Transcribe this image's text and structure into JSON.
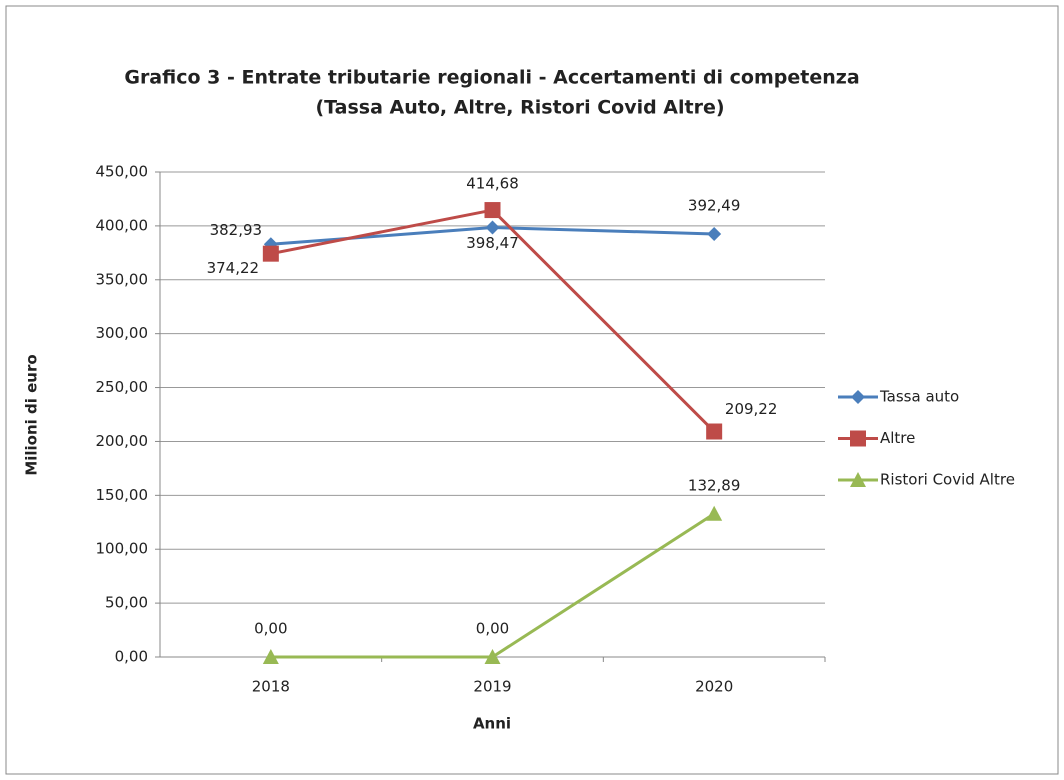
{
  "chart_data": {
    "type": "line",
    "title": "Grafico 3 - Entrate tributarie regionali - Accertamenti di competenza",
    "subtitle": "(Tassa Auto, Altre, Ristori Covid Altre)",
    "x_label": "Anni",
    "y_label": "Milioni di euro",
    "categories": [
      "2018",
      "2019",
      "2020"
    ],
    "series": [
      {
        "name": "Tassa auto",
        "color": "#4a7ebb",
        "marker": "diamond",
        "values": [
          382.93,
          398.47,
          392.49
        ],
        "value_labels": [
          "382,93",
          "398,47",
          "392,49"
        ]
      },
      {
        "name": "Altre",
        "color": "#be4b48",
        "marker": "square",
        "values": [
          374.22,
          414.68,
          209.22
        ],
        "value_labels": [
          "374,22",
          "414,68",
          "209,22"
        ]
      },
      {
        "name": "Ristori Covid Altre",
        "color": "#98b954",
        "marker": "triangle",
        "values": [
          0,
          0,
          132.89
        ],
        "value_labels": [
          "0,00",
          "0,00",
          "132,89"
        ]
      }
    ],
    "ylim": [
      0,
      450
    ],
    "yticks": [
      {
        "value": 0,
        "label": "0,00"
      },
      {
        "value": 50,
        "label": "50,00"
      },
      {
        "value": 100,
        "label": "100,00"
      },
      {
        "value": 150,
        "label": "150,00"
      },
      {
        "value": 200,
        "label": "200,00"
      },
      {
        "value": 250,
        "label": "250,00"
      },
      {
        "value": 300,
        "label": "300,00"
      },
      {
        "value": 350,
        "label": "350,00"
      },
      {
        "value": 400,
        "label": "400,00"
      },
      {
        "value": 450,
        "label": "450,00"
      }
    ],
    "grid": true,
    "legend": "right"
  }
}
